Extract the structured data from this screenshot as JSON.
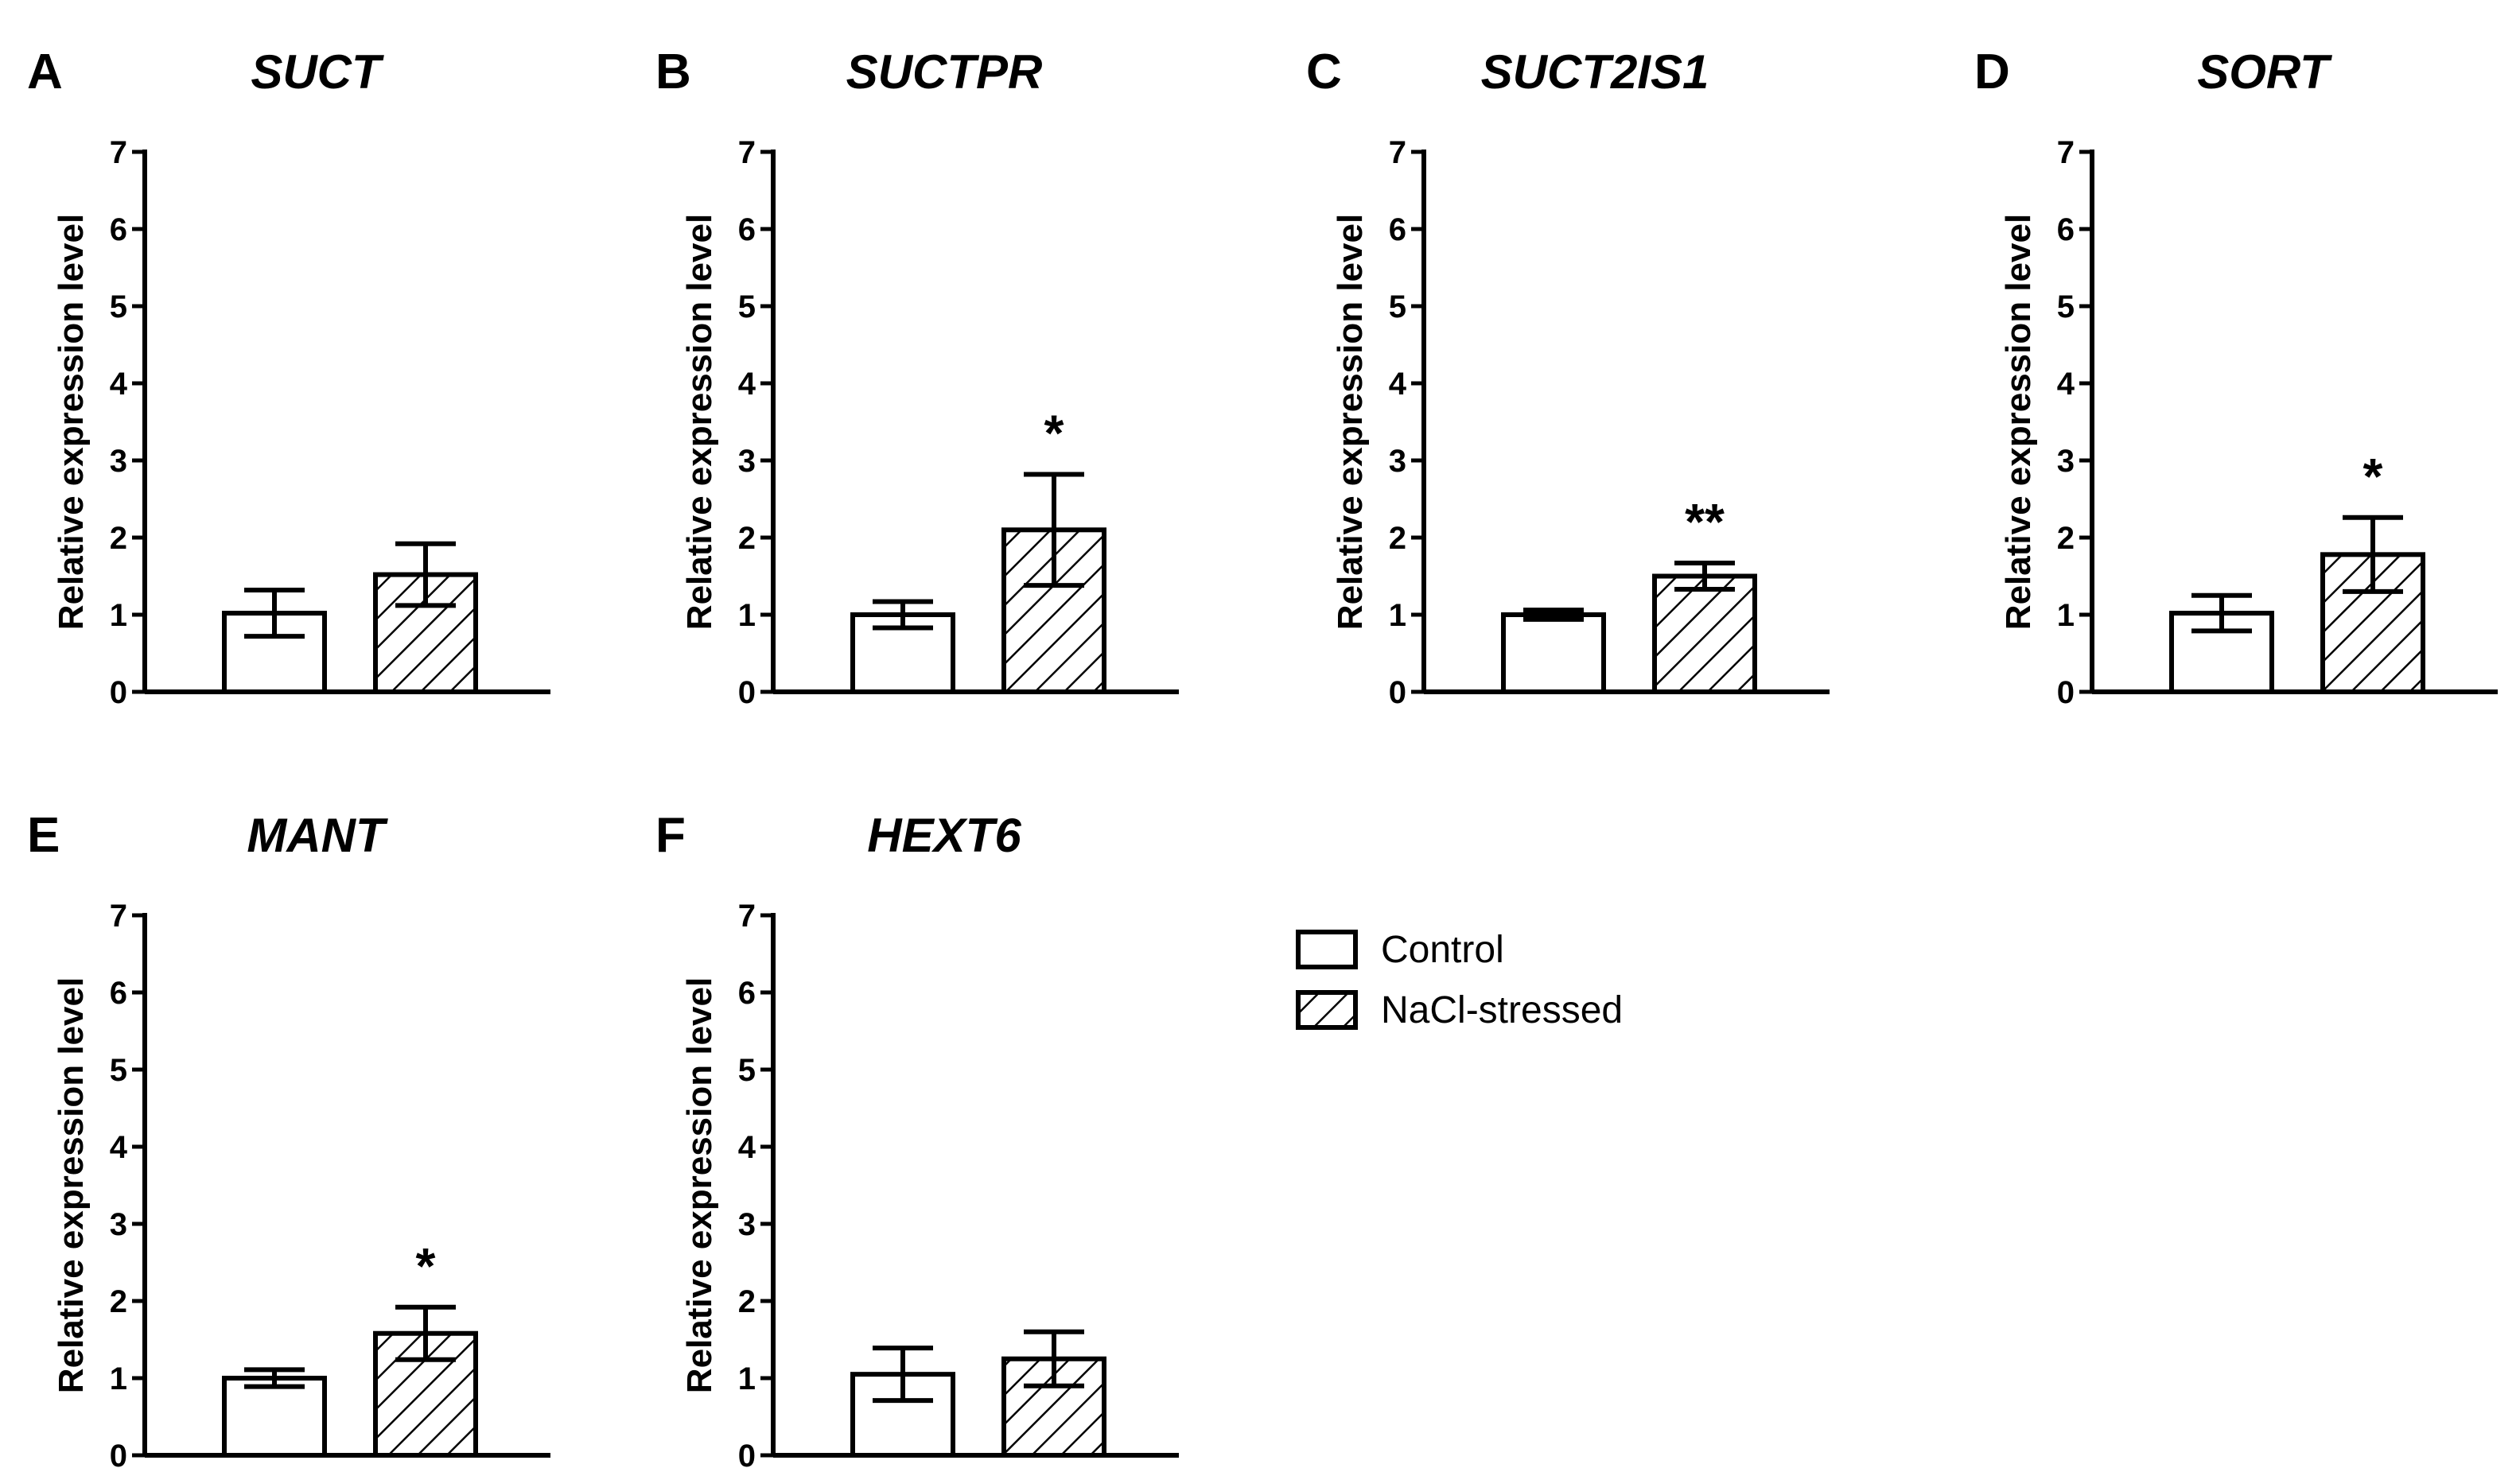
{
  "figure": {
    "legend": [
      {
        "name": "Control",
        "pattern": "none"
      },
      {
        "name": "NaCl-stressed",
        "pattern": "hatch"
      }
    ]
  },
  "chart_data": [
    {
      "type": "bar",
      "panel": "A",
      "title": "SUCT",
      "ylabel": "Relative expression level",
      "ylim": [
        0,
        7
      ],
      "yticks": [
        "0",
        "1",
        "2",
        "3",
        "4",
        "5",
        "6",
        "7"
      ],
      "categories": [
        "Control",
        "NaCl-stressed"
      ],
      "values": [
        1.02,
        1.52
      ],
      "errors": [
        0.3,
        0.4
      ],
      "significance": [
        "",
        ""
      ]
    },
    {
      "type": "bar",
      "panel": "B",
      "title": "SUCTPR",
      "ylabel": "Relative expression level",
      "ylim": [
        0,
        7
      ],
      "yticks": [
        "0",
        "1",
        "2",
        "3",
        "4",
        "5",
        "6",
        "7"
      ],
      "categories": [
        "Control",
        "NaCl-stressed"
      ],
      "values": [
        1.0,
        2.1
      ],
      "errors": [
        0.17,
        0.72
      ],
      "significance": [
        "",
        "*"
      ]
    },
    {
      "type": "bar",
      "panel": "C",
      "title": "SUCT2IS1",
      "ylabel": "Relative expression level",
      "ylim": [
        0,
        7
      ],
      "yticks": [
        "0",
        "1",
        "2",
        "3",
        "4",
        "5",
        "6",
        "7"
      ],
      "categories": [
        "Control",
        "NaCl-stressed"
      ],
      "values": [
        1.0,
        1.5
      ],
      "errors": [
        0.06,
        0.17
      ],
      "significance": [
        "",
        "**"
      ]
    },
    {
      "type": "bar",
      "panel": "D",
      "title": "SORT",
      "ylabel": "Relative expression level",
      "ylim": [
        0,
        7
      ],
      "yticks": [
        "0",
        "1",
        "2",
        "3",
        "4",
        "5",
        "6",
        "7"
      ],
      "categories": [
        "Control",
        "NaCl-stressed"
      ],
      "values": [
        1.02,
        1.78
      ],
      "errors": [
        0.23,
        0.48
      ],
      "significance": [
        "",
        "*"
      ]
    },
    {
      "type": "bar",
      "panel": "E",
      "title": "MANT",
      "ylabel": "Relative expression level",
      "ylim": [
        0,
        7
      ],
      "yticks": [
        "0",
        "1",
        "2",
        "3",
        "4",
        "5",
        "6",
        "7"
      ],
      "categories": [
        "Control",
        "NaCl-stressed"
      ],
      "values": [
        1.0,
        1.58
      ],
      "errors": [
        0.11,
        0.34
      ],
      "significance": [
        "",
        "*"
      ]
    },
    {
      "type": "bar",
      "panel": "F",
      "title": "HEXT6",
      "ylabel": "Relative expression level",
      "ylim": [
        0,
        7
      ],
      "yticks": [
        "0",
        "1",
        "2",
        "3",
        "4",
        "5",
        "6",
        "7"
      ],
      "categories": [
        "Control",
        "NaCl-stressed"
      ],
      "values": [
        1.05,
        1.25
      ],
      "errors": [
        0.34,
        0.35
      ],
      "significance": [
        "",
        ""
      ]
    }
  ]
}
